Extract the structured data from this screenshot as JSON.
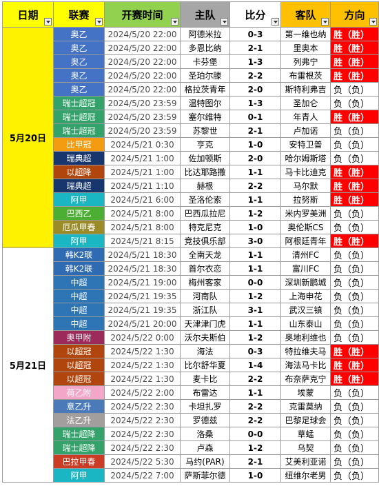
{
  "headers": {
    "date": "日期",
    "league": "联赛",
    "time": "开赛时间",
    "home": "主队",
    "score": "比分",
    "away": "客队",
    "dir": "方向"
  },
  "header_colors": {
    "date": "#ffff00",
    "league": "#ffff00",
    "time": "#92d050",
    "home": "#a6a6a6",
    "score": "#ffffff",
    "away": "#ffc000",
    "dir": "#ffc000"
  },
  "dates": [
    {
      "label": "5月20日",
      "rows": 16,
      "color": "#fff200"
    },
    {
      "label": "5月21日",
      "rows": 17,
      "color": "#ffffff"
    }
  ],
  "rows": [
    {
      "league": "奥乙",
      "color": "#4472c4",
      "time": "2024/5/20 22:00",
      "home": "阿德米拉",
      "score": "0-3",
      "away": "第一维也纳",
      "dir": "胜（胜）"
    },
    {
      "league": "奥乙",
      "color": "#4472c4",
      "time": "2024/5/20 22:00",
      "home": "多恩比纳",
      "score": "2-1",
      "away": "里奥本",
      "dir": "胜（胜）"
    },
    {
      "league": "奥乙",
      "color": "#4472c4",
      "time": "2024/5/20 22:00",
      "home": "卡芬堡",
      "score": "1-3",
      "away": "列弗宁",
      "dir": "胜（胜）"
    },
    {
      "league": "奥乙",
      "color": "#4472c4",
      "time": "2024/5/20 22:00",
      "home": "圣珀尔滕",
      "score": "2-2",
      "away": "布雷根茨",
      "dir": "胜（胜）"
    },
    {
      "league": "奥乙",
      "color": "#4472c4",
      "time": "2024/5/20 22:00",
      "home": "格拉茨青年",
      "score": "2-0",
      "away": "斯特利弗吉",
      "dir": "负（负）"
    },
    {
      "league": "瑞士超冠",
      "color": "#33a36b",
      "time": "2024/5/20 23:59",
      "home": "温特图尔",
      "score": "1-3",
      "away": "圣加仑",
      "dir": "负（负）"
    },
    {
      "league": "瑞士超冠",
      "color": "#33a36b",
      "time": "2024/5/20 23:59",
      "home": "塞尔维特",
      "score": "0-1",
      "away": "年青人",
      "dir": "胜（胜）"
    },
    {
      "league": "瑞士超冠",
      "color": "#33a36b",
      "time": "2024/5/20 23:59",
      "home": "苏黎世",
      "score": "2-1",
      "away": "卢加诺",
      "dir": "负（负）"
    },
    {
      "league": "比甲冠",
      "color": "#f39c12",
      "time": "2024/5/21 0:30",
      "home": "亨克",
      "score": "1-0",
      "away": "安特卫普",
      "dir": "负（负）"
    },
    {
      "league": "瑞典超",
      "color": "#17366e",
      "time": "2024/5/21 1:00",
      "home": "佐加顿斯",
      "score": "2-0",
      "away": "哈尔姆斯塔",
      "dir": "负（负）"
    },
    {
      "league": "以超降",
      "color": "#b0460e",
      "time": "2024/5/21 1:00",
      "home": "比达耶路撒",
      "score": "1-1",
      "away": "马卡比迪克",
      "dir": "胜（胜）"
    },
    {
      "league": "瑞典超",
      "color": "#17366e",
      "time": "2024/5/21 1:10",
      "home": "赫根",
      "score": "2-2",
      "away": "马尔默",
      "dir": "胜（胜）"
    },
    {
      "league": "阿甲",
      "color": "#1ab6c4",
      "time": "2024/5/21 6:00",
      "home": "圣洛伦索",
      "score": "1-1",
      "away": "拉努斯",
      "dir": "胜（胜）"
    },
    {
      "league": "巴西乙",
      "color": "#4caf34",
      "time": "2024/5/21 8:00",
      "home": "巴西瓜拉尼",
      "score": "1-2",
      "away": "米内罗美洲",
      "dir": "负（负）"
    },
    {
      "league": "厄瓜甲春",
      "color": "#9c8c28",
      "time": "2024/5/21 8:00",
      "home": "特克尼克",
      "score": "1-0",
      "away": "奥伦斯CS",
      "dir": "负（负）"
    },
    {
      "league": "阿甲",
      "color": "#1ab6c4",
      "time": "2024/5/21 8:15",
      "home": "竞技俱乐部",
      "score": "3-0",
      "away": "阿根廷青年",
      "dir": "胜（胜）"
    },
    {
      "league": "韩K2联",
      "color": "#2f6bb3",
      "time": "2024/5/21 18:30",
      "home": "全南天龙",
      "score": "1-1",
      "away": "清州FC",
      "dir": "负（负）"
    },
    {
      "league": "韩K2联",
      "color": "#2f6bb3",
      "time": "2024/5/21 18:30",
      "home": "首尔衣恋",
      "score": "1-1",
      "away": "富川FC",
      "dir": "负（负）"
    },
    {
      "league": "中超",
      "color": "#2e75b6",
      "time": "2024/5/21 19:00",
      "home": "梅州客家",
      "score": "0-0",
      "away": "深圳新鹏城",
      "dir": "负（负）"
    },
    {
      "league": "中超",
      "color": "#2e75b6",
      "time": "2024/5/21 19:35",
      "home": "河南队",
      "score": "1-2",
      "away": "上海申花",
      "dir": "负（负）"
    },
    {
      "league": "中超",
      "color": "#2e75b6",
      "time": "2024/5/21 19:35",
      "home": "浙江队",
      "score": "3-1",
      "away": "武汉三镇",
      "dir": "负（负）"
    },
    {
      "league": "中超",
      "color": "#2e75b6",
      "time": "2024/5/21 20:00",
      "home": "天津津门虎",
      "score": "1-1",
      "away": "山东泰山",
      "dir": "负（负）"
    },
    {
      "league": "奥甲附",
      "color": "#9c2a5a",
      "time": "2024/5/22 0:00",
      "home": "沃尔夫斯伯",
      "score": "1-2",
      "away": "奥地利维也",
      "dir": "负（负）"
    },
    {
      "league": "以超冠",
      "color": "#b0460e",
      "time": "2024/5/22 1:30",
      "home": "海法",
      "score": "0-3",
      "away": "特拉维夫马",
      "dir": "胜（胜）"
    },
    {
      "league": "以超冠",
      "color": "#b0460e",
      "time": "2024/5/22 1:30",
      "home": "比尔舒华夏",
      "score": "1-4",
      "away": "海法马卡比",
      "dir": "胜（胜）"
    },
    {
      "league": "以超冠",
      "color": "#b0460e",
      "time": "2024/5/22 1:30",
      "home": "麦卡比",
      "score": "2-2",
      "away": "布奈萨克宁",
      "dir": "胜（胜）"
    },
    {
      "league": "荷乙附",
      "color": "#f4a6c8",
      "time": "2024/5/22 2:00",
      "home": "布雷达",
      "score": "1-1",
      "away": "埃蒙",
      "dir": "负（负）"
    },
    {
      "league": "意乙升",
      "color": "#4a7ab8",
      "time": "2024/5/22 2:30",
      "home": "卡坦扎罗",
      "score": "2-2",
      "away": "克雷莫纳",
      "dir": "负（负）"
    },
    {
      "league": "法乙升",
      "color": "#a39e9e",
      "time": "2024/5/22 2:30",
      "home": "罗德兹",
      "score": "2-2",
      "away": "巴黎足球会",
      "dir": "负（负）"
    },
    {
      "league": "瑞士超降",
      "color": "#33a36b",
      "time": "2024/5/22 2:30",
      "home": "洛桑",
      "score": "0-0",
      "away": "草蜢",
      "dir": "负（负）"
    },
    {
      "league": "瑞士超降",
      "color": "#33a36b",
      "time": "2024/5/22 2:30",
      "home": "卢森",
      "score": "1-2",
      "away": "乌契",
      "dir": "负（负）"
    },
    {
      "league": "巴拉甲春",
      "color": "#cc3b24",
      "time": "2024/5/22 5:30",
      "home": "马约(PAR)",
      "score": "2-1",
      "away": "艾美利亚诺",
      "dir": "负（负）"
    },
    {
      "league": "阿甲",
      "color": "#1ab6c4",
      "time": "2024/5/22 7:00",
      "home": "萨斯菲尔德",
      "score": "1-0",
      "away": "纽维尔老男",
      "dir": "负（负）"
    }
  ],
  "dir_colors": {
    "win": "#ff0000",
    "lose": "#ffffff"
  }
}
